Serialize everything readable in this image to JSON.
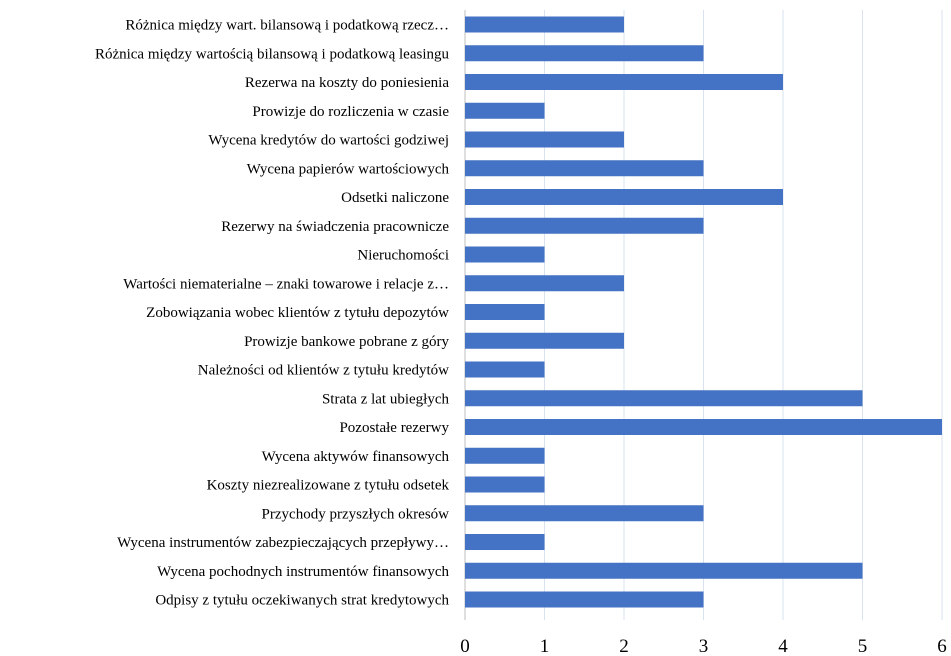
{
  "chart_data": {
    "type": "bar",
    "orientation": "horizontal",
    "categories": [
      "Różnica między wart. bilansową i podatkową rzecz…",
      "Różnica między wartością bilansową i podatkową leasingu",
      "Rezerwa na koszty do poniesienia",
      "Prowizje do rozliczenia w czasie",
      "Wycena kredytów do wartości godziwej",
      "Wycena papierów wartościowych",
      "Odsetki naliczone",
      "Rezerwy na świadczenia pracownicze",
      "Nieruchomości",
      "Wartości niematerialne – znaki towarowe i relacje z…",
      "Zobowiązania wobec klientów z tytułu depozytów",
      "Prowizje bankowe pobrane z góry",
      "Należności od klientów z tytułu kredytów",
      "Strata z lat ubiegłych",
      "Pozostałe rezerwy",
      "Wycena aktywów finansowych",
      "Koszty niezrealizowane z tytułu odsetek",
      "Przychody przyszłych okresów",
      "Wycena instrumentów zabezpieczających przepływy…",
      "Wycena pochodnych instrumentów finansowych",
      "Odpisy z tytułu oczekiwanych strat kredytowych"
    ],
    "values": [
      2,
      3,
      4,
      1,
      2,
      3,
      4,
      3,
      1,
      2,
      1,
      2,
      1,
      5,
      6,
      1,
      1,
      3,
      1,
      5,
      3
    ],
    "xticks": [
      "0",
      "1",
      "2",
      "3",
      "4",
      "5",
      "6"
    ],
    "xlim": [
      0,
      6
    ],
    "grid": true,
    "bar_color": "#4472c4",
    "grid_color": "#d9e2ef",
    "title": "",
    "xlabel": "",
    "ylabel": ""
  }
}
